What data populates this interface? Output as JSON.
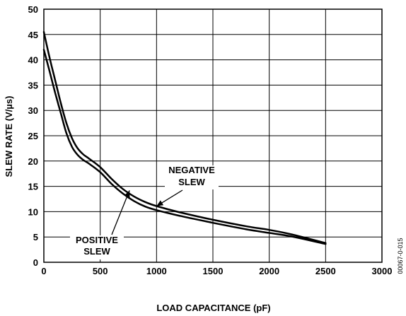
{
  "chart_data": {
    "type": "line",
    "xlabel": "LOAD CAPACITANCE (pF)",
    "ylabel": "SLEW RATE (V/µs)",
    "xlim": [
      0,
      3000
    ],
    "ylim": [
      0,
      50
    ],
    "x_ticks": [
      "0",
      "500",
      "1000",
      "1500",
      "2000",
      "2500",
      "3000"
    ],
    "y_ticks": [
      "0",
      "5",
      "10",
      "15",
      "20",
      "25",
      "30",
      "35",
      "40",
      "45",
      "50"
    ],
    "grid": true,
    "series": [
      {
        "name": "NEGATIVE SLEW",
        "x": [
          0,
          50,
          100,
          150,
          200,
          250,
          300,
          350,
          400,
          500,
          600,
          700,
          800,
          900,
          1000,
          1200,
          1500,
          1800,
          2000,
          2200,
          2500
        ],
        "y": [
          45.5,
          40.5,
          36,
          31.5,
          27.5,
          24.5,
          22.5,
          21.3,
          20.5,
          18.8,
          16.5,
          14.5,
          13,
          11.9,
          11.1,
          9.9,
          8.4,
          7.1,
          6.4,
          5.5,
          3.8
        ]
      },
      {
        "name": "POSITIVE SLEW",
        "x": [
          0,
          50,
          100,
          150,
          200,
          250,
          300,
          350,
          400,
          500,
          600,
          700,
          800,
          900,
          1000,
          1200,
          1500,
          1800,
          2000,
          2200,
          2500
        ],
        "y": [
          42,
          37.8,
          33.5,
          29.5,
          25.5,
          22.8,
          21.2,
          20.2,
          19.5,
          17.8,
          15.5,
          13.6,
          12.1,
          11,
          10.3,
          9.2,
          7.8,
          6.5,
          5.8,
          5.1,
          3.6
        ]
      }
    ],
    "annotations": [
      {
        "text": [
          "NEGATIVE",
          "SLEW"
        ],
        "points_to": [
          1000,
          11.1
        ]
      },
      {
        "text": [
          "POSITIVE",
          "SLEW"
        ],
        "points_to": [
          760,
          14.2
        ]
      }
    ],
    "figure_id": "00067-0-015"
  }
}
